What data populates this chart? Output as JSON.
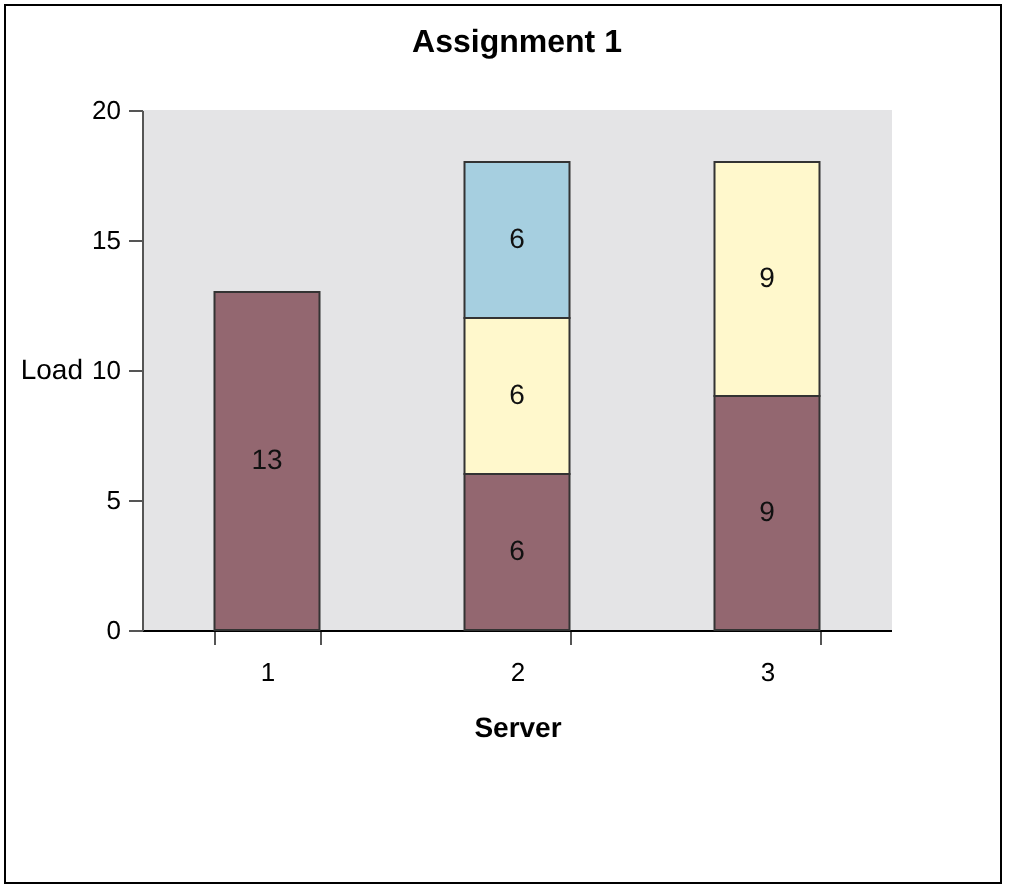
{
  "chart_data": {
    "type": "bar",
    "title": "Assignment 1",
    "xlabel": "Server",
    "ylabel": "Load",
    "categories": [
      "1",
      "2",
      "3"
    ],
    "stacked": true,
    "data_labels": true,
    "series": [
      {
        "color": "#936770",
        "values": [
          13,
          6,
          9
        ]
      },
      {
        "color": "#fff8cc",
        "values": [
          null,
          6,
          9
        ]
      },
      {
        "color": "#a6cfe0",
        "values": [
          null,
          6,
          null
        ]
      }
    ],
    "ylim": [
      0,
      20
    ],
    "yticks": [
      0,
      5,
      10,
      15,
      20
    ],
    "grid": false,
    "legend": false
  }
}
